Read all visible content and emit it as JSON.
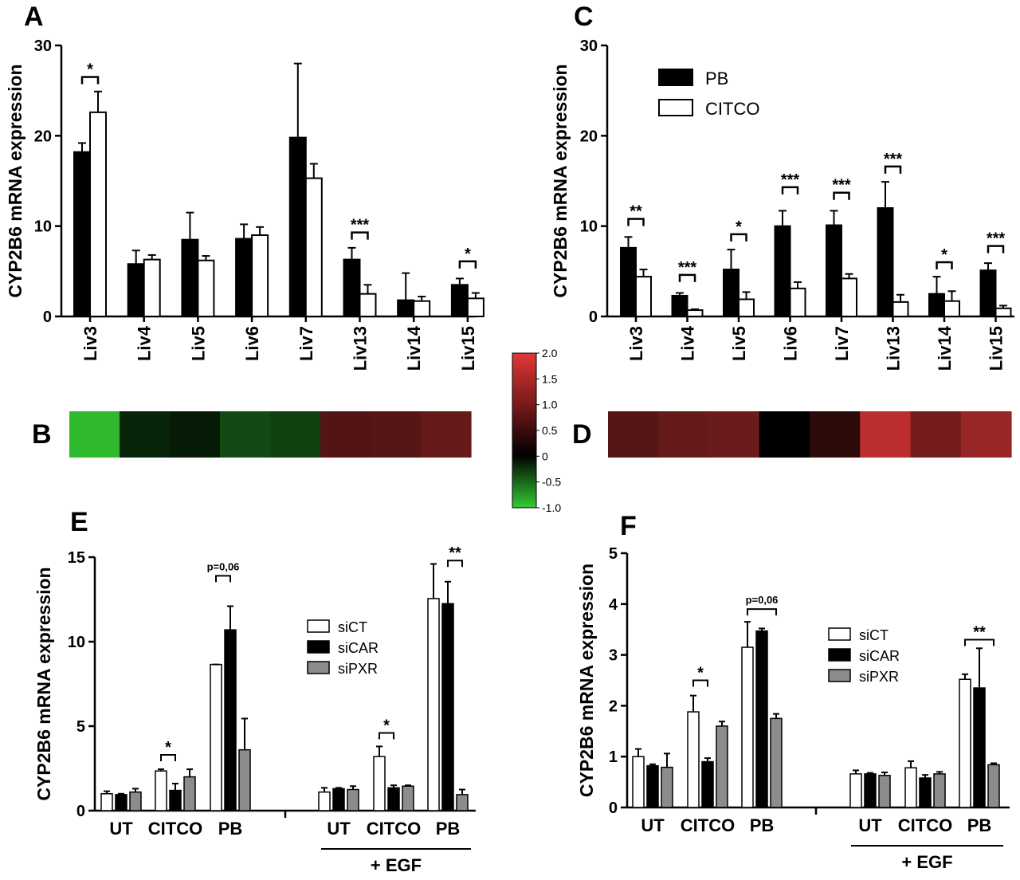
{
  "colors": {
    "black_bar": "#000000",
    "white_bar": "#ffffff",
    "gray_bar": "#8c8c8c",
    "heat_neg": "#2fb92f",
    "heat_zero": "#000000",
    "heat_pos": "#cc3333"
  },
  "panel_letters": {
    "A": "A",
    "B": "B",
    "C": "C",
    "D": "D",
    "E": "E",
    "F": "F"
  },
  "heatmap_colorbar": {
    "ticks": [
      {
        "v": 2.0,
        "label": "2.0"
      },
      {
        "v": 1.5,
        "label": "1.5"
      },
      {
        "v": 1.0,
        "label": "1.0"
      },
      {
        "v": 0.5,
        "label": "0.5"
      },
      {
        "v": 0.0,
        "label": "0"
      },
      {
        "v": -0.5,
        "label": "-0.5"
      },
      {
        "v": -1.0,
        "label": "-1.0"
      }
    ],
    "range": [
      -1.0,
      2.0
    ]
  },
  "chart_data": [
    {
      "panel": "A",
      "type": "bar",
      "ylabel": "CYP2B6 mRNA expression",
      "ylim": [
        0,
        30
      ],
      "yticks": [
        0,
        10,
        20,
        30
      ],
      "categories": [
        "Liv3",
        "Liv4",
        "Liv5",
        "Liv6",
        "Liv7",
        "Liv13",
        "Liv14",
        "Liv15"
      ],
      "series": [
        {
          "color": "black",
          "values": [
            18.2,
            5.8,
            8.5,
            8.6,
            19.8,
            6.3,
            1.8,
            3.5
          ],
          "errors": [
            1.0,
            1.5,
            3.0,
            1.6,
            8.2,
            1.3,
            3.0,
            0.7
          ]
        },
        {
          "color": "white",
          "values": [
            22.6,
            6.3,
            6.2,
            9.0,
            15.3,
            2.5,
            1.7,
            2.0
          ],
          "errors": [
            2.3,
            0.5,
            0.5,
            0.9,
            1.6,
            1.0,
            0.5,
            0.6
          ]
        }
      ],
      "annotations": [
        {
          "index": 0,
          "text": "*",
          "level": 26.5
        },
        {
          "index": 5,
          "text": "***",
          "level": 9.3
        },
        {
          "index": 7,
          "text": "*",
          "level": 6.1
        }
      ]
    },
    {
      "panel": "B",
      "type": "heatmap",
      "values": [
        -1.0,
        -0.2,
        -0.15,
        -0.4,
        -0.35,
        0.8,
        0.85,
        1.0
      ]
    },
    {
      "panel": "C",
      "type": "bar",
      "ylabel": "CYP2B6 mRNA expression",
      "ylim": [
        0,
        30
      ],
      "yticks": [
        0,
        10,
        20,
        30
      ],
      "categories": [
        "Liv3",
        "Liv4",
        "Liv5",
        "Liv6",
        "Liv7",
        "Liv13",
        "Liv14",
        "Liv15"
      ],
      "legend": {
        "position": "top-left",
        "labels": [
          "PB",
          "CITCO"
        ]
      },
      "series": [
        {
          "name": "PB",
          "color": "black",
          "values": [
            7.6,
            2.3,
            5.2,
            10.0,
            10.1,
            12.0,
            2.5,
            5.1
          ],
          "errors": [
            1.2,
            0.3,
            2.2,
            1.7,
            1.6,
            2.9,
            1.9,
            0.8
          ]
        },
        {
          "name": "CITCO",
          "color": "white",
          "values": [
            4.4,
            0.7,
            1.9,
            3.1,
            4.2,
            1.6,
            1.7,
            0.9
          ],
          "errors": [
            0.8,
            0.1,
            0.8,
            0.7,
            0.5,
            0.8,
            1.1,
            0.3
          ]
        }
      ],
      "annotations": [
        {
          "index": 0,
          "text": "**",
          "level": 10.8
        },
        {
          "index": 1,
          "text": "***",
          "level": 4.6
        },
        {
          "index": 2,
          "text": "*",
          "level": 9.1
        },
        {
          "index": 3,
          "text": "***",
          "level": 14.3
        },
        {
          "index": 4,
          "text": "***",
          "level": 13.7
        },
        {
          "index": 5,
          "text": "***",
          "level": 16.6
        },
        {
          "index": 6,
          "text": "*",
          "level": 6.0
        },
        {
          "index": 7,
          "text": "***",
          "level": 7.8
        }
      ]
    },
    {
      "panel": "D",
      "type": "heatmap",
      "values": [
        0.85,
        1.0,
        1.05,
        0.0,
        0.45,
        1.85,
        1.15,
        1.5
      ]
    },
    {
      "panel": "E",
      "type": "bar",
      "ylabel": "CYP2B6 mRNA expression",
      "ylim": [
        0,
        15
      ],
      "yticks": [
        0,
        5,
        10,
        15
      ],
      "categories": [
        "UT",
        "CITCO",
        "PB",
        "UT",
        "CITCO",
        "PB"
      ],
      "group_label": "+ EGF",
      "legend": {
        "position": "right",
        "labels": [
          "siCT",
          "siCAR",
          "siPXR"
        ]
      },
      "series": [
        {
          "name": "siCT",
          "color": "white",
          "values": [
            1.0,
            2.35,
            8.65,
            1.1,
            3.2,
            12.55
          ],
          "errors": [
            0.15,
            0.1,
            0.0,
            0.25,
            0.6,
            2.05
          ]
        },
        {
          "name": "siCAR",
          "color": "black",
          "values": [
            0.95,
            1.2,
            10.7,
            1.3,
            1.35,
            12.25
          ],
          "errors": [
            0.05,
            0.4,
            1.4,
            0.05,
            0.15,
            1.3
          ]
        },
        {
          "name": "siPXR",
          "color": "gray",
          "values": [
            1.1,
            2.0,
            3.6,
            1.25,
            1.45,
            0.95
          ],
          "errors": [
            0.2,
            0.45,
            1.85,
            0.2,
            0.05,
            0.3
          ]
        }
      ],
      "annotations": [
        {
          "group": 1,
          "from": 0,
          "to": 1,
          "text": "*",
          "level": 3.3
        },
        {
          "group": 2,
          "from": 0,
          "to": 1,
          "text": "p=0,06",
          "level": 13.9
        },
        {
          "group": 4,
          "from": 0,
          "to": 1,
          "text": "*",
          "level": 4.6
        },
        {
          "group": 5,
          "from": 1,
          "to": 2,
          "text": "**",
          "level": 14.8
        }
      ]
    },
    {
      "panel": "F",
      "type": "bar",
      "ylabel": "CYP2B6 mRNA expression",
      "ylim": [
        0,
        5
      ],
      "yticks": [
        0,
        1,
        2,
        3,
        4,
        5
      ],
      "categories": [
        "UT",
        "CITCO",
        "PB",
        "UT",
        "CITCO",
        "PB"
      ],
      "group_label": "+ EGF",
      "legend": {
        "position": "right",
        "labels": [
          "siCT",
          "siCAR",
          "siPXR"
        ]
      },
      "series": [
        {
          "name": "siCT",
          "color": "white",
          "values": [
            1.0,
            1.88,
            3.15,
            0.66,
            0.78,
            2.52
          ],
          "errors": [
            0.15,
            0.32,
            0.5,
            0.07,
            0.13,
            0.1
          ]
        },
        {
          "name": "siCAR",
          "color": "black",
          "values": [
            0.82,
            0.9,
            3.47,
            0.66,
            0.58,
            2.35
          ],
          "errors": [
            0.03,
            0.07,
            0.05,
            0.02,
            0.06,
            0.78
          ]
        },
        {
          "name": "siPXR",
          "color": "gray",
          "values": [
            0.79,
            1.6,
            1.75,
            0.63,
            0.66,
            0.84
          ],
          "errors": [
            0.27,
            0.09,
            0.09,
            0.06,
            0.04,
            0.03
          ]
        }
      ],
      "annotations": [
        {
          "group": 1,
          "from": 0,
          "to": 1,
          "text": "*",
          "level": 2.5
        },
        {
          "group": 2,
          "from": 0,
          "to": 2,
          "text": "p=0,06",
          "level": 3.9
        },
        {
          "group": 5,
          "from": 0,
          "to": 2,
          "text": "**",
          "level": 3.3
        }
      ]
    }
  ]
}
